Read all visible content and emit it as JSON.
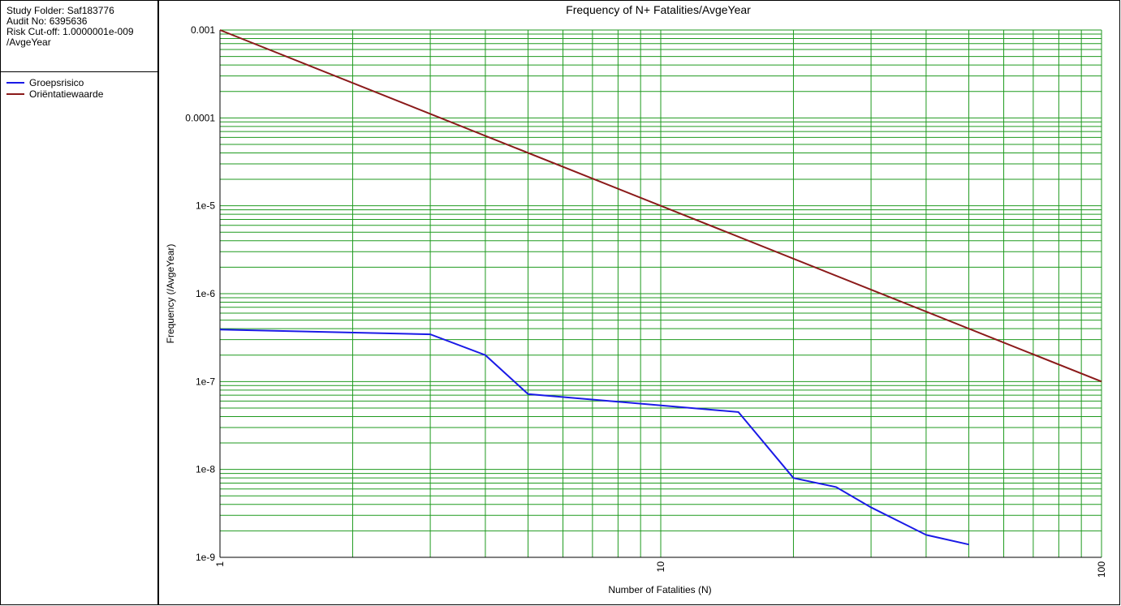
{
  "info": [
    "Study Folder: Saf183776",
    "Audit No: 6395636",
    "Risk Cut-off: 1.0000001e-009",
    "/AvgeYear"
  ],
  "chart_data": {
    "type": "line",
    "title": "Frequency of N+ Fatalities/AvgeYear",
    "xlabel": "Number of Fatalities (N)",
    "ylabel": "Frequency (/AvgeYear)",
    "xscale": "log",
    "yscale": "log",
    "grid": true,
    "grid_color": "#1f9a1f",
    "xlim": [
      1,
      100
    ],
    "xticks": [
      1,
      10,
      100
    ],
    "xminorticks": [
      2,
      3,
      4,
      5,
      6,
      7,
      8,
      9,
      20,
      30,
      40,
      50,
      60,
      70,
      80,
      90
    ],
    "ylim": [
      1e-09,
      0.001
    ],
    "yticks": [
      {
        "value": 1e-09,
        "label": "1e-9"
      },
      {
        "value": 1e-08,
        "label": "1e-8"
      },
      {
        "value": 1e-07,
        "label": "1e-7"
      },
      {
        "value": 1e-06,
        "label": "1e-6"
      },
      {
        "value": 1e-05,
        "label": "1e-5"
      },
      0.0001,
      0.001
    ],
    "yminorticks": [
      2e-09,
      3e-09,
      4e-09,
      5e-09,
      6e-09,
      7e-09,
      8e-09,
      9e-09,
      2e-08,
      3e-08,
      4e-08,
      5e-08,
      6e-08,
      7e-08,
      8e-08,
      9e-08,
      2e-07,
      3e-07,
      4e-07,
      5e-07,
      6e-07,
      7e-07,
      8e-07,
      9e-07,
      2e-06,
      3e-06,
      4e-06,
      5e-06,
      6e-06,
      7e-06,
      8e-06,
      9e-06,
      2e-05,
      3e-05,
      4e-05,
      5e-05,
      6e-05,
      7e-05,
      8e-05,
      9e-05,
      0.0002,
      0.0003,
      0.0004,
      0.0005,
      0.0006,
      0.0007,
      0.0008,
      0.0009
    ],
    "series": [
      {
        "name": "Groepsrisico",
        "color": "#1a1ae6",
        "x": [
          1,
          3,
          4,
          5,
          15,
          20,
          25,
          30,
          40,
          50
        ],
        "values": [
          3.9e-07,
          3.45e-07,
          2e-07,
          7.2e-08,
          4.5e-08,
          8e-09,
          6.3e-09,
          3.7e-09,
          1.8e-09,
          1.4e-09
        ]
      },
      {
        "name": "Oriëntatiewaarde",
        "color": "#8b1a1a",
        "x": [
          1,
          100
        ],
        "values": [
          0.001,
          1e-07
        ]
      }
    ]
  }
}
